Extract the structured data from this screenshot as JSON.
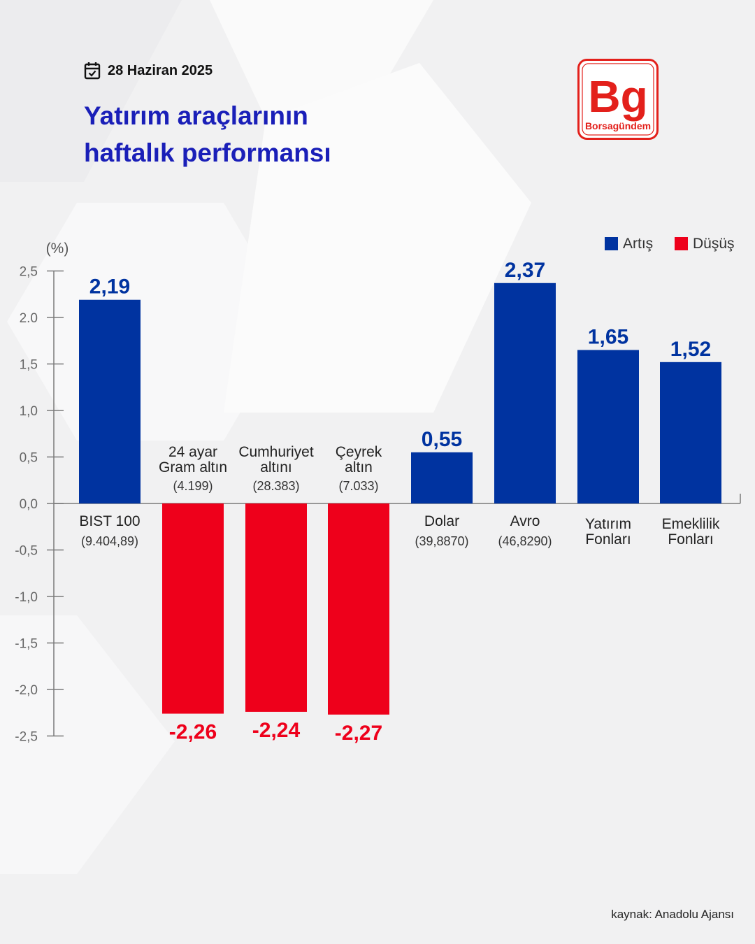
{
  "header": {
    "date": "28 Haziran 2025",
    "title_lines": [
      "Yatırım araçlarının",
      "haftalık performansı"
    ]
  },
  "logo": {
    "mark": "Bg",
    "name": "Borsagündem",
    "color": "#e3201b"
  },
  "icons": {
    "date": "calendar-check-icon"
  },
  "footer": {
    "source": "kaynak: Anadolu Ajansı"
  },
  "colors": {
    "up": "#0033a0",
    "down": "#ee001b",
    "value_up": "#0033a0",
    "value_down": "#ee001b"
  },
  "chart_data": {
    "type": "bar",
    "ylabel": "(%)",
    "ylim": [
      -2.5,
      2.5
    ],
    "yticks": [
      "2,5",
      "2.0",
      "1,5",
      "1,0",
      "0,5",
      "0,0",
      "-0,5",
      "-1,0",
      "-1,5",
      "-2,0",
      "-2,5"
    ],
    "ytick_values": [
      2.5,
      2.0,
      1.5,
      1.0,
      0.5,
      0.0,
      -0.5,
      -1.0,
      -1.5,
      -2.0,
      -2.5
    ],
    "legend": {
      "position": "top-right",
      "items": [
        {
          "label": "Artış",
          "color": "#0033a0"
        },
        {
          "label": "Düşüş",
          "color": "#ee001b"
        }
      ]
    },
    "bars": [
      {
        "label_lines": [
          "BIST 100"
        ],
        "sub": "(9.404,89)",
        "value": 2.19,
        "value_label": "2,19"
      },
      {
        "label_lines": [
          "24 ayar",
          "Gram altın"
        ],
        "sub": "(4.199)",
        "value": -2.26,
        "value_label": "-2,26"
      },
      {
        "label_lines": [
          "Cumhuriyet",
          "altını"
        ],
        "sub": "(28.383)",
        "value": -2.24,
        "value_label": "-2,24"
      },
      {
        "label_lines": [
          "Çeyrek",
          "altın"
        ],
        "sub": "(7.033)",
        "value": -2.27,
        "value_label": "-2,27"
      },
      {
        "label_lines": [
          "Dolar"
        ],
        "sub": "(39,8870)",
        "value": 0.55,
        "value_label": "0,55"
      },
      {
        "label_lines": [
          "Avro"
        ],
        "sub": "(46,8290)",
        "value": 2.37,
        "value_label": "2,37"
      },
      {
        "label_lines": [
          "Yatırım",
          "Fonları"
        ],
        "sub": "",
        "value": 1.65,
        "value_label": "1,65"
      },
      {
        "label_lines": [
          "Emeklilik",
          "Fonları"
        ],
        "sub": "",
        "value": 1.52,
        "value_label": "1,52"
      }
    ]
  }
}
